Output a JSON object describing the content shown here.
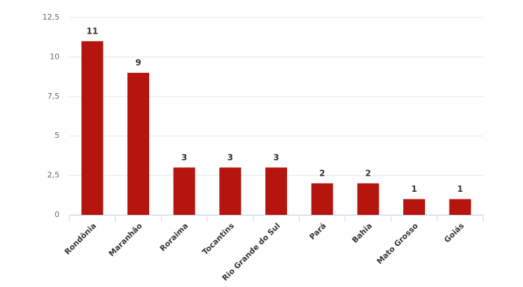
{
  "chart_data": {
    "type": "bar",
    "categories": [
      "Rondônia",
      "Maranhão",
      "Roraima",
      "Tocantins",
      "Rio Grande do Sul",
      "Pará",
      "Bahia",
      "Mato Grosso",
      "Goiás"
    ],
    "values": [
      11,
      9,
      3,
      3,
      3,
      2,
      2,
      1,
      1
    ],
    "color": "#b5150d",
    "ylim": [
      0,
      12.5
    ],
    "yticks": [
      0,
      {
        "value": 2.5,
        "label": "2,5"
      },
      5,
      {
        "value": 7.5,
        "label": "7,5"
      },
      10,
      {
        "value": 12.5,
        "label": "12,5"
      }
    ],
    "grid": true
  }
}
